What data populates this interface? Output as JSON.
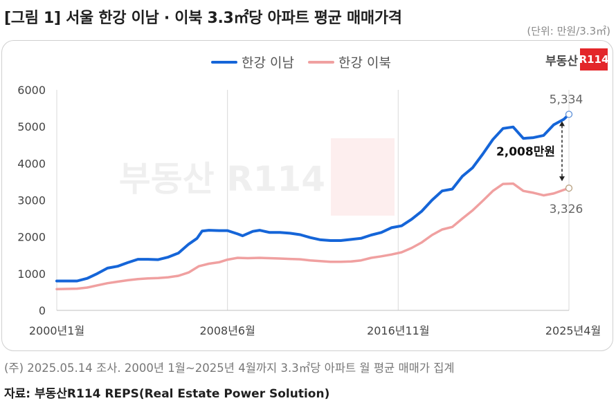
{
  "header": {
    "title": "[그림 1] 서울 한강 이남 · 이북 3.3㎡당 아파트 평균 매매가격",
    "unit": "(단위: 만원/3.3㎡)"
  },
  "logo": {
    "text": "부동산",
    "box": "R114"
  },
  "watermark": "부동산 R114",
  "footer": {
    "note": "(주) 2025.05.14 조사. 2000년 1월~2025년 4월까지 3.3㎡당 아파트 월 평균 매매가 집계",
    "source": "자료: 부동산R114 REPS(Real Estate Power Solution)"
  },
  "colors": {
    "south": "#1565d8",
    "north": "#f0a0a0",
    "grid": "#d9d9d9"
  },
  "chart_data": {
    "type": "line",
    "x_unit": "month",
    "x_range": [
      "2000-01",
      "2025-04"
    ],
    "x_ticks": [
      {
        "label": "2000년1월",
        "date": "2000-01"
      },
      {
        "label": "2008년6월",
        "date": "2008-06"
      },
      {
        "label": "2016년11월",
        "date": "2016-11"
      },
      {
        "label": "2025년4월",
        "date": "2025-04"
      }
    ],
    "ylim": [
      0,
      6000
    ],
    "y_ticks": [
      0,
      1000,
      2000,
      3000,
      4000,
      5000,
      6000
    ],
    "grid": "vertical",
    "legend": "top-center",
    "series": [
      {
        "name": "한강 이남",
        "color": "#1565d8",
        "points": [
          [
            "2000-01",
            800
          ],
          [
            "2001-01",
            800
          ],
          [
            "2001-07",
            870
          ],
          [
            "2002-01",
            1000
          ],
          [
            "2002-07",
            1150
          ],
          [
            "2003-01",
            1200
          ],
          [
            "2003-07",
            1300
          ],
          [
            "2004-01",
            1390
          ],
          [
            "2004-07",
            1390
          ],
          [
            "2005-01",
            1380
          ],
          [
            "2005-07",
            1450
          ],
          [
            "2006-01",
            1560
          ],
          [
            "2006-07",
            1800
          ],
          [
            "2006-12",
            1960
          ],
          [
            "2007-03",
            2160
          ],
          [
            "2007-07",
            2180
          ],
          [
            "2008-01",
            2170
          ],
          [
            "2008-06",
            2170
          ],
          [
            "2008-12",
            2080
          ],
          [
            "2009-03",
            2030
          ],
          [
            "2009-09",
            2150
          ],
          [
            "2010-01",
            2180
          ],
          [
            "2010-07",
            2120
          ],
          [
            "2011-01",
            2120
          ],
          [
            "2011-07",
            2100
          ],
          [
            "2012-01",
            2060
          ],
          [
            "2012-07",
            1980
          ],
          [
            "2013-01",
            1920
          ],
          [
            "2013-07",
            1900
          ],
          [
            "2014-01",
            1900
          ],
          [
            "2014-07",
            1930
          ],
          [
            "2015-01",
            1960
          ],
          [
            "2015-07",
            2050
          ],
          [
            "2016-01",
            2120
          ],
          [
            "2016-07",
            2250
          ],
          [
            "2017-01",
            2300
          ],
          [
            "2017-07",
            2480
          ],
          [
            "2018-01",
            2700
          ],
          [
            "2018-07",
            3000
          ],
          [
            "2019-01",
            3250
          ],
          [
            "2019-07",
            3300
          ],
          [
            "2020-01",
            3650
          ],
          [
            "2020-07",
            3880
          ],
          [
            "2021-01",
            4250
          ],
          [
            "2021-07",
            4650
          ],
          [
            "2022-01",
            4950
          ],
          [
            "2022-07",
            4990
          ],
          [
            "2023-01",
            4680
          ],
          [
            "2023-07",
            4700
          ],
          [
            "2024-01",
            4760
          ],
          [
            "2024-07",
            5050
          ],
          [
            "2025-01",
            5200
          ],
          [
            "2025-04",
            5334
          ]
        ],
        "end_label": "5,334"
      },
      {
        "name": "한강 이북",
        "color": "#f0a0a0",
        "points": [
          [
            "2000-01",
            580
          ],
          [
            "2001-01",
            590
          ],
          [
            "2001-07",
            620
          ],
          [
            "2002-01",
            680
          ],
          [
            "2002-07",
            740
          ],
          [
            "2003-01",
            780
          ],
          [
            "2003-07",
            820
          ],
          [
            "2004-01",
            850
          ],
          [
            "2004-07",
            870
          ],
          [
            "2005-01",
            880
          ],
          [
            "2005-07",
            900
          ],
          [
            "2006-01",
            940
          ],
          [
            "2006-07",
            1030
          ],
          [
            "2007-01",
            1200
          ],
          [
            "2007-07",
            1270
          ],
          [
            "2008-01",
            1310
          ],
          [
            "2008-06",
            1380
          ],
          [
            "2008-12",
            1430
          ],
          [
            "2009-06",
            1420
          ],
          [
            "2010-01",
            1430
          ],
          [
            "2010-07",
            1420
          ],
          [
            "2011-01",
            1410
          ],
          [
            "2011-07",
            1400
          ],
          [
            "2012-01",
            1390
          ],
          [
            "2012-07",
            1360
          ],
          [
            "2013-01",
            1340
          ],
          [
            "2013-07",
            1320
          ],
          [
            "2014-01",
            1320
          ],
          [
            "2014-07",
            1330
          ],
          [
            "2015-01",
            1360
          ],
          [
            "2015-07",
            1430
          ],
          [
            "2016-01",
            1470
          ],
          [
            "2016-07",
            1520
          ],
          [
            "2017-01",
            1580
          ],
          [
            "2017-07",
            1700
          ],
          [
            "2018-01",
            1850
          ],
          [
            "2018-07",
            2050
          ],
          [
            "2019-01",
            2200
          ],
          [
            "2019-07",
            2270
          ],
          [
            "2020-01",
            2500
          ],
          [
            "2020-07",
            2720
          ],
          [
            "2021-01",
            2980
          ],
          [
            "2021-07",
            3250
          ],
          [
            "2022-01",
            3440
          ],
          [
            "2022-07",
            3450
          ],
          [
            "2023-01",
            3250
          ],
          [
            "2023-07",
            3200
          ],
          [
            "2024-01",
            3130
          ],
          [
            "2024-07",
            3180
          ],
          [
            "2025-01",
            3280
          ],
          [
            "2025-04",
            3326
          ]
        ],
        "end_label": "3,326"
      }
    ],
    "annotations": [
      {
        "text": "2,008만원",
        "at": "2025-04"
      }
    ]
  }
}
